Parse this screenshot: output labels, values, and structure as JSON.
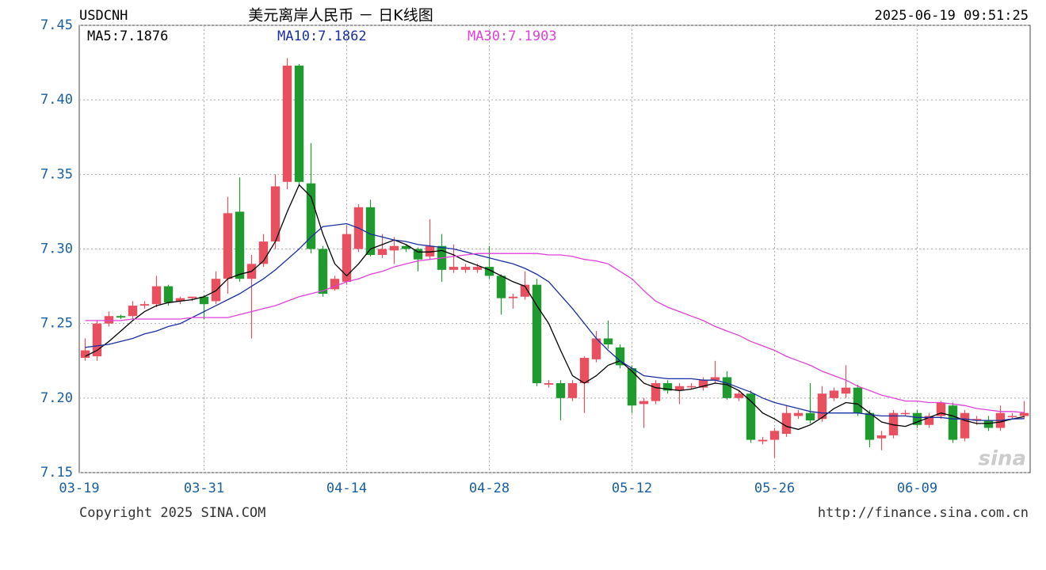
{
  "chart_data": {
    "type": "candlestick",
    "symbol": "USDCNH",
    "title": "美元离岸人民币 － 日K线图",
    "timestamp": "2025-06-19 09:51:25",
    "copyright": "Copyright 2025 SINA.COM",
    "source_url": "http://finance.sina.com.cn",
    "watermark": "sina",
    "up_color": "#e8505f",
    "down_color": "#1f9a2e",
    "grid": true,
    "ylim": [
      7.15,
      7.45
    ],
    "yticks": [
      7.15,
      {
        "value": 7.2,
        "label": "7.20"
      },
      7.25,
      {
        "value": 7.3,
        "label": "7.30"
      },
      7.35,
      {
        "value": 7.4,
        "label": "7.40"
      },
      7.45
    ],
    "categories": [
      "03-19",
      null,
      null,
      null,
      null,
      null,
      null,
      null,
      null,
      null,
      "03-31",
      null,
      null,
      null,
      null,
      null,
      null,
      null,
      null,
      null,
      null,
      null,
      "04-14",
      null,
      null,
      null,
      null,
      null,
      null,
      null,
      null,
      null,
      null,
      null,
      "04-28",
      null,
      null,
      null,
      null,
      null,
      null,
      null,
      null,
      null,
      null,
      null,
      "05-12",
      null,
      null,
      null,
      null,
      null,
      null,
      null,
      null,
      null,
      null,
      null,
      "05-26",
      null,
      null,
      null,
      null,
      null,
      null,
      null,
      null,
      null,
      null,
      null,
      "06-09",
      null,
      null,
      null,
      null,
      null,
      null,
      null,
      null,
      null
    ],
    "open": [
      7.227,
      7.228,
      7.25,
      7.255,
      7.255,
      7.262,
      7.263,
      7.275,
      7.265,
      7.267,
      7.268,
      7.265,
      7.28,
      7.325,
      7.28,
      7.29,
      7.305,
      7.345,
      7.423,
      7.344,
      7.3,
      7.273,
      7.278,
      7.3,
      7.328,
      7.296,
      7.299,
      7.302,
      7.3,
      7.295,
      7.302,
      7.286,
      7.286,
      7.286,
      7.288,
      7.282,
      7.267,
      7.268,
      7.276,
      7.209,
      7.21,
      7.2,
      7.21,
      7.226,
      7.24,
      7.234,
      7.22,
      7.196,
      7.198,
      7.21,
      7.205,
      7.208,
      7.207,
      7.212,
      7.214,
      7.2,
      7.203,
      7.171,
      7.172,
      7.176,
      7.188,
      7.19,
      7.186,
      7.2,
      7.203,
      7.207,
      7.19,
      7.173,
      7.175,
      7.19,
      7.19,
      7.182,
      7.188,
      7.195,
      7.173,
      7.185,
      7.185,
      7.18,
      7.188,
      7.188
    ],
    "high": [
      7.24,
      7.252,
      7.258,
      7.256,
      7.265,
      7.265,
      7.282,
      7.276,
      7.268,
      7.268,
      7.269,
      7.285,
      7.335,
      7.348,
      7.296,
      7.31,
      7.35,
      7.428,
      7.424,
      7.371,
      7.302,
      7.282,
      7.316,
      7.33,
      7.333,
      7.31,
      7.308,
      7.303,
      7.301,
      7.32,
      7.31,
      7.303,
      7.29,
      7.29,
      7.302,
      7.283,
      7.27,
      7.285,
      7.28,
      7.212,
      7.212,
      7.212,
      7.228,
      7.245,
      7.252,
      7.236,
      7.222,
      7.2,
      7.212,
      7.212,
      7.21,
      7.21,
      7.214,
      7.225,
      7.218,
      7.205,
      7.205,
      7.174,
      7.18,
      7.195,
      7.192,
      7.21,
      7.208,
      7.207,
      7.222,
      7.209,
      7.192,
      7.178,
      7.192,
      7.192,
      7.192,
      7.19,
      7.198,
      7.197,
      7.192,
      7.188,
      7.188,
      7.195,
      7.19,
      7.198
    ],
    "low": [
      7.225,
      7.225,
      7.248,
      7.253,
      7.253,
      7.26,
      7.261,
      7.262,
      7.263,
      7.265,
      7.253,
      7.263,
      7.27,
      7.278,
      7.24,
      7.288,
      7.3,
      7.34,
      7.343,
      7.297,
      7.268,
      7.272,
      7.276,
      7.298,
      7.295,
      7.294,
      7.29,
      7.298,
      7.285,
      7.293,
      7.278,
      7.284,
      7.284,
      7.284,
      7.28,
      7.256,
      7.26,
      7.266,
      7.208,
      7.207,
      7.185,
      7.198,
      7.19,
      7.224,
      7.233,
      7.22,
      7.19,
      7.18,
      7.196,
      7.203,
      7.196,
      7.206,
      7.205,
      7.21,
      7.199,
      7.198,
      7.17,
      7.169,
      7.16,
      7.174,
      7.186,
      7.183,
      7.184,
      7.198,
      7.2,
      7.188,
      7.167,
      7.165,
      7.173,
      7.188,
      7.18,
      7.18,
      7.186,
      7.17,
      7.171,
      7.182,
      7.178,
      7.178,
      7.186,
      7.186
    ],
    "close": [
      7.232,
      7.25,
      7.255,
      7.254,
      7.262,
      7.263,
      7.275,
      7.264,
      7.267,
      7.268,
      7.263,
      7.28,
      7.324,
      7.28,
      7.29,
      7.305,
      7.342,
      7.423,
      7.345,
      7.3,
      7.27,
      7.28,
      7.31,
      7.328,
      7.296,
      7.3,
      7.302,
      7.3,
      7.293,
      7.302,
      7.286,
      7.288,
      7.288,
      7.288,
      7.282,
      7.267,
      7.268,
      7.276,
      7.21,
      7.21,
      7.2,
      7.21,
      7.227,
      7.24,
      7.236,
      7.222,
      7.195,
      7.198,
      7.21,
      7.205,
      7.208,
      7.208,
      7.212,
      7.214,
      7.2,
      7.203,
      7.172,
      7.172,
      7.178,
      7.19,
      7.19,
      7.185,
      7.203,
      7.205,
      7.207,
      7.19,
      7.172,
      7.175,
      7.19,
      7.19,
      7.182,
      7.188,
      7.197,
      7.172,
      7.19,
      7.186,
      7.18,
      7.19,
      7.188,
      7.19
    ],
    "series": [
      {
        "name": "MA5:7.1876",
        "color": "#000000",
        "values": [
          7.228,
          7.232,
          7.238,
          7.245,
          7.252,
          7.258,
          7.262,
          7.264,
          7.265,
          7.266,
          7.268,
          7.272,
          7.28,
          7.283,
          7.285,
          7.292,
          7.305,
          7.325,
          7.343,
          7.335,
          7.31,
          7.29,
          7.282,
          7.29,
          7.3,
          7.303,
          7.306,
          7.303,
          7.298,
          7.298,
          7.299,
          7.296,
          7.292,
          7.289,
          7.286,
          7.282,
          7.278,
          7.275,
          7.262,
          7.25,
          7.232,
          7.215,
          7.21,
          7.215,
          7.222,
          7.225,
          7.218,
          7.21,
          7.207,
          7.206,
          7.205,
          7.206,
          7.208,
          7.21,
          7.209,
          7.205,
          7.198,
          7.19,
          7.186,
          7.181,
          7.179,
          7.182,
          7.187,
          7.193,
          7.197,
          7.196,
          7.19,
          7.184,
          7.182,
          7.181,
          7.184,
          7.187,
          7.19,
          7.188,
          7.185,
          7.183,
          7.183,
          7.184,
          7.186,
          7.1876
        ]
      },
      {
        "name": "MA10:7.1862",
        "color": "#1a2fa0",
        "values": [
          7.234,
          7.235,
          7.236,
          7.238,
          7.24,
          7.243,
          7.245,
          7.248,
          7.25,
          7.254,
          7.258,
          7.262,
          7.266,
          7.27,
          7.275,
          7.28,
          7.286,
          7.293,
          7.3,
          7.308,
          7.315,
          7.316,
          7.317,
          7.314,
          7.31,
          7.308,
          7.306,
          7.305,
          7.303,
          7.302,
          7.301,
          7.3,
          7.298,
          7.296,
          7.294,
          7.292,
          7.29,
          7.287,
          7.283,
          7.278,
          7.269,
          7.26,
          7.25,
          7.24,
          7.232,
          7.225,
          7.22,
          7.215,
          7.214,
          7.213,
          7.213,
          7.213,
          7.212,
          7.212,
          7.21,
          7.207,
          7.204,
          7.2,
          7.197,
          7.195,
          7.193,
          7.191,
          7.19,
          7.19,
          7.19,
          7.19,
          7.189,
          7.188,
          7.188,
          7.188,
          7.187,
          7.187,
          7.187,
          7.186,
          7.186,
          7.185,
          7.185,
          7.185,
          7.186,
          7.1862
        ]
      },
      {
        "name": "MA30:7.1903",
        "color": "#e040d8",
        "values": [
          7.252,
          7.252,
          7.252,
          7.252,
          7.253,
          7.253,
          7.253,
          7.253,
          7.253,
          7.254,
          7.254,
          7.254,
          7.254,
          7.256,
          7.258,
          7.26,
          7.262,
          7.265,
          7.268,
          7.27,
          7.272,
          7.275,
          7.278,
          7.28,
          7.283,
          7.285,
          7.288,
          7.29,
          7.292,
          7.293,
          7.294,
          7.295,
          7.296,
          7.297,
          7.297,
          7.297,
          7.297,
          7.297,
          7.297,
          7.296,
          7.296,
          7.295,
          7.293,
          7.292,
          7.29,
          7.285,
          7.28,
          7.272,
          7.265,
          7.261,
          7.258,
          7.255,
          7.252,
          7.248,
          7.245,
          7.242,
          7.238,
          7.235,
          7.232,
          7.228,
          7.225,
          7.222,
          7.218,
          7.215,
          7.212,
          7.208,
          7.205,
          7.202,
          7.2,
          7.198,
          7.198,
          7.197,
          7.197,
          7.196,
          7.195,
          7.193,
          7.192,
          7.191,
          7.191,
          7.1903
        ]
      }
    ]
  }
}
